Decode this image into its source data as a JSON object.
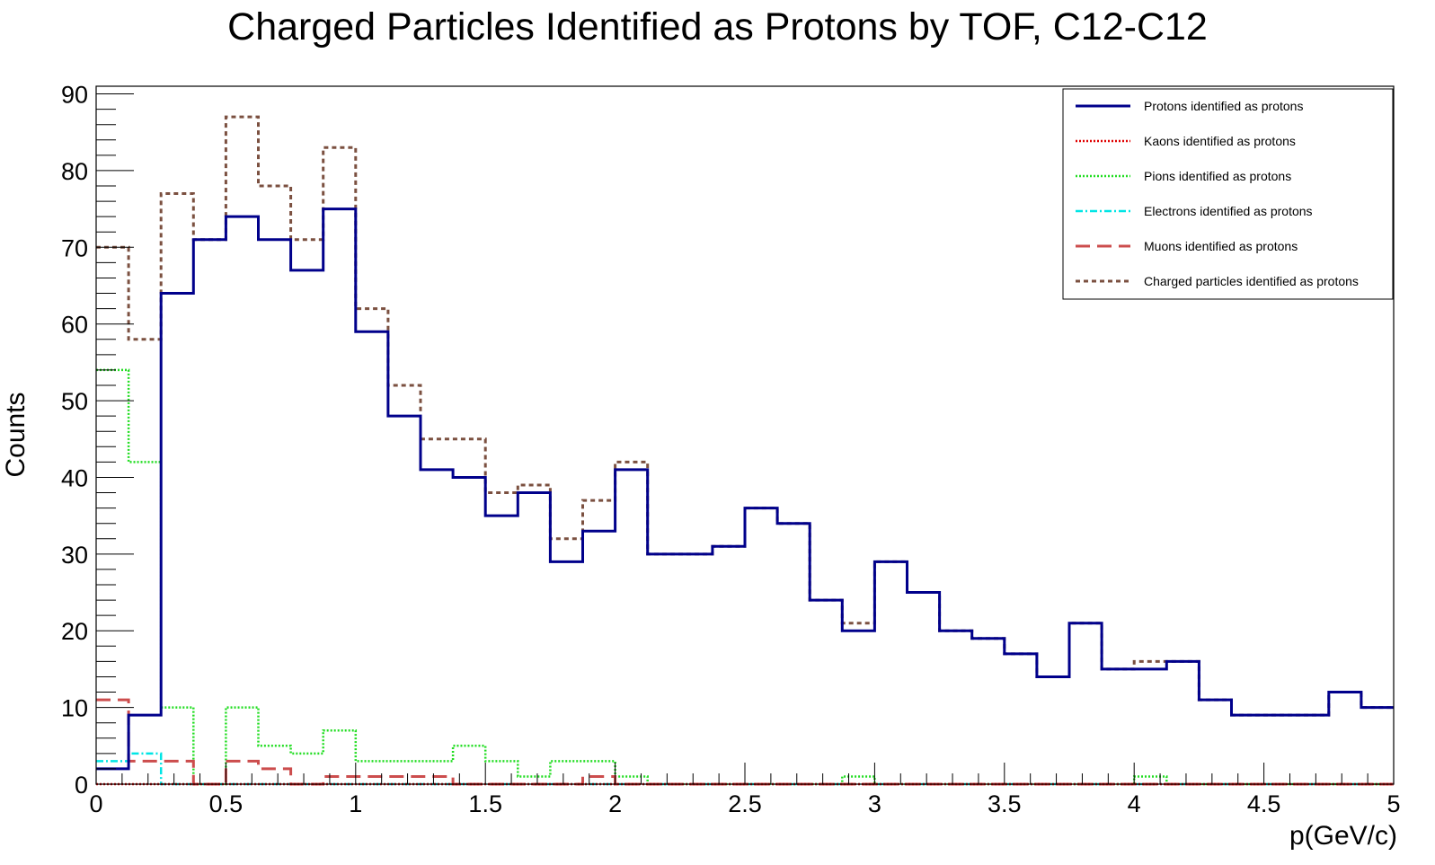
{
  "chart_data": {
    "type": "histogram-step",
    "title": "Charged Particles Identified as Protons by TOF, C12-C12",
    "xlabel": "p(GeV/c)",
    "ylabel": "Counts",
    "xlim": [
      0,
      5
    ],
    "ylim": [
      0,
      91
    ],
    "x_ticks": [
      0,
      0.5,
      1,
      1.5,
      2,
      2.5,
      3,
      3.5,
      4,
      4.5,
      5
    ],
    "x_tick_labels": [
      "0",
      "0.5",
      "1",
      "1.5",
      "2",
      "2.5",
      "3",
      "3.5",
      "4",
      "4.5",
      "5"
    ],
    "y_ticks": [
      0,
      10,
      20,
      30,
      40,
      50,
      60,
      70,
      80,
      90
    ],
    "y_tick_labels": [
      "0",
      "10",
      "20",
      "30",
      "40",
      "50",
      "60",
      "70",
      "80",
      "90"
    ],
    "bin_width": 0.125,
    "grid": false,
    "legend_position": "top-right",
    "series": [
      {
        "name": "Protons identified as protons",
        "color": "#00008b",
        "style": "solid",
        "values": [
          2,
          9,
          64,
          71,
          74,
          71,
          67,
          75,
          59,
          48,
          41,
          40,
          35,
          38,
          29,
          33,
          41,
          30,
          30,
          31,
          36,
          34,
          24,
          20,
          29,
          25,
          20,
          19,
          17,
          14,
          21,
          15,
          15,
          16,
          11,
          9,
          9,
          9,
          12,
          10
        ]
      },
      {
        "name": "Kaons identified as protons",
        "color": "#e00000",
        "style": "dotted",
        "values": [
          0,
          0,
          0,
          0,
          0,
          0,
          0,
          0,
          0,
          0,
          0,
          0,
          0,
          0,
          0,
          0,
          0,
          0,
          0,
          0,
          0,
          0,
          0,
          0,
          0,
          0,
          0,
          0,
          0,
          0,
          0,
          0,
          0,
          0,
          0,
          0,
          0,
          0,
          0,
          0
        ]
      },
      {
        "name": "Pions identified as protons",
        "color": "#22dd22",
        "style": "dotted",
        "values": [
          54,
          42,
          10,
          0,
          10,
          5,
          4,
          7,
          3,
          3,
          3,
          5,
          3,
          1,
          3,
          3,
          1,
          0,
          0,
          0,
          0,
          0,
          0,
          1,
          0,
          0,
          0,
          0,
          0,
          0,
          0,
          0,
          1,
          0,
          0,
          0,
          0,
          0,
          0,
          0
        ]
      },
      {
        "name": "Electrons identified as protons",
        "color": "#00e5e5",
        "style": "dashdot",
        "values": [
          3,
          4,
          0,
          0,
          0,
          0,
          0,
          0,
          0,
          0,
          0,
          0,
          0,
          0,
          0,
          0,
          0,
          0,
          0,
          0,
          0,
          0,
          0,
          0,
          0,
          0,
          0,
          0,
          0,
          0,
          0,
          0,
          0,
          0,
          0,
          0,
          0,
          0,
          0,
          0
        ]
      },
      {
        "name": "Muons identified as protons",
        "color": "#cc4d4d",
        "style": "longdash",
        "values": [
          11,
          3,
          3,
          0,
          3,
          2,
          0,
          1,
          1,
          1,
          1,
          0,
          0,
          0,
          0,
          1,
          0,
          0,
          0,
          0,
          0,
          0,
          0,
          0,
          0,
          0,
          0,
          0,
          0,
          0,
          0,
          0,
          0,
          0,
          0,
          0,
          0,
          0,
          0,
          0
        ]
      },
      {
        "name": "Charged particles identified as protons",
        "color": "#7b5040",
        "style": "dashed",
        "values": [
          70,
          58,
          77,
          71,
          87,
          78,
          71,
          83,
          62,
          52,
          45,
          45,
          38,
          39,
          32,
          37,
          42,
          30,
          30,
          31,
          36,
          34,
          24,
          21,
          29,
          25,
          20,
          19,
          17,
          14,
          21,
          15,
          16,
          16,
          11,
          9,
          9,
          9,
          12,
          10
        ]
      }
    ]
  }
}
